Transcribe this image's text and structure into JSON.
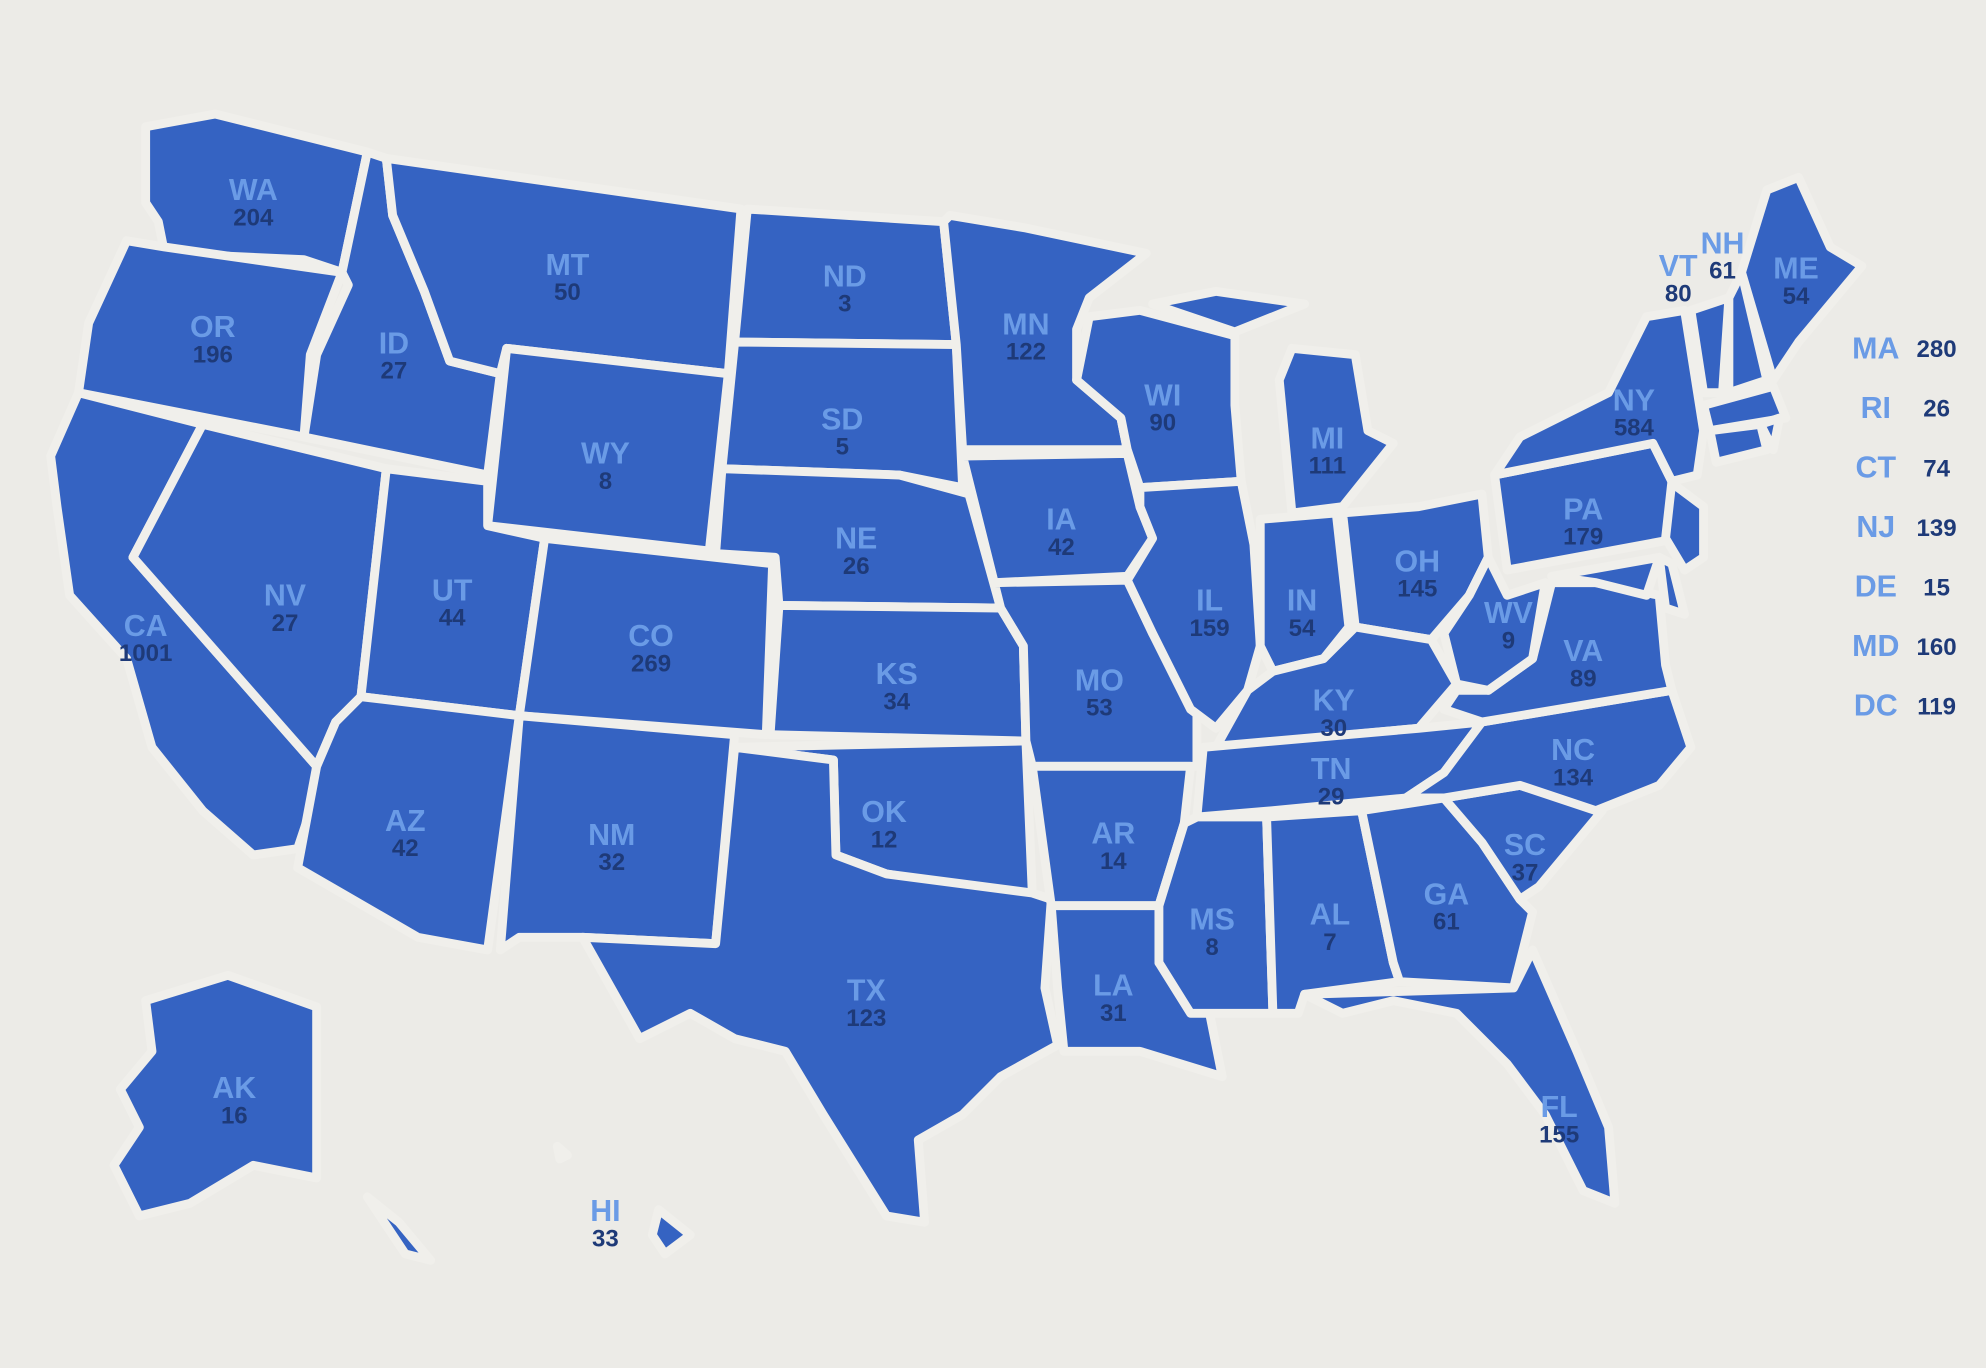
{
  "colors": {
    "state_fill": "#3563c2",
    "border": "#f0efeb",
    "label": "#6a9be6",
    "count": "#1e3a78",
    "background": "#ecebe7"
  },
  "states": [
    {
      "code": "WA",
      "count": "204"
    },
    {
      "code": "OR",
      "count": "196"
    },
    {
      "code": "CA",
      "count": "1001"
    },
    {
      "code": "NV",
      "count": "27"
    },
    {
      "code": "ID",
      "count": "27"
    },
    {
      "code": "MT",
      "count": "50"
    },
    {
      "code": "WY",
      "count": "8"
    },
    {
      "code": "UT",
      "count": "44"
    },
    {
      "code": "CO",
      "count": "269"
    },
    {
      "code": "AZ",
      "count": "42"
    },
    {
      "code": "NM",
      "count": "32"
    },
    {
      "code": "ND",
      "count": "3"
    },
    {
      "code": "SD",
      "count": "5"
    },
    {
      "code": "NE",
      "count": "26"
    },
    {
      "code": "KS",
      "count": "34"
    },
    {
      "code": "OK",
      "count": "12"
    },
    {
      "code": "TX",
      "count": "123"
    },
    {
      "code": "MN",
      "count": "122"
    },
    {
      "code": "IA",
      "count": "42"
    },
    {
      "code": "MO",
      "count": "53"
    },
    {
      "code": "AR",
      "count": "14"
    },
    {
      "code": "LA",
      "count": "31"
    },
    {
      "code": "WI",
      "count": "90"
    },
    {
      "code": "IL",
      "count": "159"
    },
    {
      "code": "MI",
      "count": "111"
    },
    {
      "code": "IN",
      "count": "54"
    },
    {
      "code": "OH",
      "count": "145"
    },
    {
      "code": "KY",
      "count": "30"
    },
    {
      "code": "TN",
      "count": "29"
    },
    {
      "code": "MS",
      "count": "8"
    },
    {
      "code": "AL",
      "count": "7"
    },
    {
      "code": "GA",
      "count": "61"
    },
    {
      "code": "FL",
      "count": "155"
    },
    {
      "code": "SC",
      "count": "37"
    },
    {
      "code": "NC",
      "count": "134"
    },
    {
      "code": "VA",
      "count": "89"
    },
    {
      "code": "WV",
      "count": "9"
    },
    {
      "code": "PA",
      "count": "179"
    },
    {
      "code": "NY",
      "count": "584"
    },
    {
      "code": "VT",
      "count": "80"
    },
    {
      "code": "NH",
      "count": "61"
    },
    {
      "code": "ME",
      "count": "54"
    },
    {
      "code": "AK",
      "count": "16"
    },
    {
      "code": "HI",
      "count": "33"
    }
  ],
  "side_legend": [
    {
      "code": "MA",
      "count": "280"
    },
    {
      "code": "RI",
      "count": "26"
    },
    {
      "code": "CT",
      "count": "74"
    },
    {
      "code": "NJ",
      "count": "139"
    },
    {
      "code": "DE",
      "count": "15"
    },
    {
      "code": "MD",
      "count": "160"
    },
    {
      "code": "DC",
      "count": "119"
    }
  ]
}
